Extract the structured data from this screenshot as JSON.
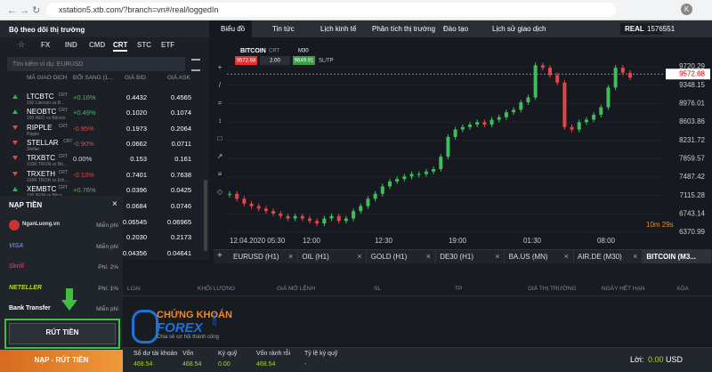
{
  "browser": {
    "url": "xstation5.xtb.com/?branch=vn#/real/loggedIn"
  },
  "header": {
    "watchlist_title": "Bộ theo dõi thị trường",
    "tabs": [
      "Biểu đồ",
      "Tin tức",
      "Lịch kinh tế",
      "Phân tích thị trường",
      "Đào tạo",
      "Lịch sử giao dịch"
    ],
    "account_type": "REAL",
    "account_id": "1576551"
  },
  "watchlist": {
    "tabs": [
      "FX",
      "IND",
      "CMD",
      "CRT",
      "STC",
      "ETF"
    ],
    "active_tab": 3,
    "search_placeholder": "Tìm kiếm ví dụ: EURUSD",
    "columns": [
      "MÃ GIAO DỊCH",
      "ĐỔI SANG (1...",
      "GIÁ BID",
      "GIÁ ASK"
    ],
    "rows": [
      {
        "symbol": "LTCBTC",
        "symbol_type": "CRT",
        "description": "100 Litecoin vs B...",
        "change": "+0.16%",
        "bid": "0.4432",
        "ask": "0.4565"
      },
      {
        "symbol": "NEOBTC",
        "symbol_type": "CRT",
        "description": "100 NEO vs Bitcoin",
        "change": "+0.49%",
        "bid": "0.1020",
        "ask": "0.1074"
      },
      {
        "symbol": "RIPPLE",
        "symbol_type": "CRT",
        "description": "Ripple",
        "change": "-0.95%",
        "bid": "0.1973",
        "ask": "0.2064"
      },
      {
        "symbol": "STELLAR",
        "symbol_type": "CRT",
        "description": "Stellar",
        "change": "-0.90%",
        "bid": "0.0662",
        "ask": "0.0711"
      },
      {
        "symbol": "TRXBTC",
        "symbol_type": "CRT",
        "description": "100K TRON vs Bit...",
        "change": "0.00%",
        "bid": "0.153",
        "ask": "0.161"
      },
      {
        "symbol": "TRXETH",
        "symbol_type": "CRT",
        "description": "100K TRON vs Eth...",
        "change": "-0.13%",
        "bid": "0.7401",
        "ask": "0.7638"
      },
      {
        "symbol": "XEMBTC",
        "symbol_type": "CRT",
        "description": "100 NEM vs Bitco...",
        "change": "+0.76%",
        "bid": "0.0396",
        "ask": "0.0425"
      }
    ],
    "covered_rows": [
      {
        "bid": "0.0684",
        "ask": "0.0746"
      },
      {
        "bid": "0.06545",
        "ask": "0.06965"
      },
      {
        "bid": "0.2030",
        "ask": "0.2173"
      },
      {
        "bid": "0.04356",
        "ask": "0.04641"
      }
    ]
  },
  "deposit": {
    "title": "NẠP TIỀN",
    "methods": [
      {
        "name": "NganLuong.vn",
        "fee": "Miễn phí"
      },
      {
        "name": "VISA",
        "fee": "Miễn phí"
      },
      {
        "name": "Skrill",
        "fee": "Phí: 2%"
      },
      {
        "name": "NETELLER",
        "fee": "Phí: 1%"
      },
      {
        "name": "Bank Transfer",
        "fee": "Miễn phí"
      }
    ],
    "withdraw_button": "RÚT TIỀN",
    "deposit_withdraw_button": "NẠP - RÚT TIỀN"
  },
  "chart": {
    "symbol": "BITCOIN",
    "symbol_type": "CRT",
    "timeframe": "M30",
    "sell_price": "9572.68",
    "volume": "2.00",
    "buy_price": "9649.91",
    "sltp": "SL/TP",
    "ylim": [
      6245,
      10315
    ],
    "yticks": [
      9720.29,
      9348.15,
      8976.01,
      8603.86,
      8231.72,
      7859.57,
      7487.42,
      7115.28,
      6743.14,
      6370.99
    ],
    "current_price": 9572.68,
    "closes": [
      7150,
      7050,
      6950,
      6900,
      6850,
      6800,
      6750,
      6700,
      6650,
      6700,
      6650,
      6600,
      6550,
      6650,
      6700,
      6600,
      6650,
      6800,
      6900,
      7050,
      7150,
      7300,
      7400,
      7450,
      7500,
      7550,
      7550,
      7600,
      7650,
      7900,
      8300,
      8450,
      8500,
      8550,
      8600,
      8550,
      8650,
      8700,
      8800,
      8850,
      9000,
      9100,
      9750,
      9700,
      9550,
      9400,
      8500,
      8450,
      8600,
      8650,
      8750,
      8900,
      9300,
      9700,
      9600,
      9500
    ],
    "time_labels": [
      "12.04.2020 05:30",
      "12:00",
      "12:30",
      "19:00",
      "01:30",
      "08:00"
    ],
    "countdown": "10m 29s"
  },
  "chart_tabs": [
    "EURUSD (H1)",
    "OIL (H1)",
    "GOLD (H1)",
    "DE30 (H1)",
    "BA.US (MN)",
    "AIR.DE (M30)",
    "BITCOIN (M3..."
  ],
  "orders": {
    "columns": [
      "LOẠI",
      "KHỐI LƯỢNG",
      "GIÁ MỞ LỆNH",
      "SL",
      "TP",
      "GIÁ THỊ TRƯỜNG",
      "NGÀY HẾT HẠN",
      "XÓA"
    ]
  },
  "logo": {
    "line1": "CHỨNG KHOÁN",
    "line2": "FOREX",
    "domain": ".com",
    "tagline": "Chia sẻ cơ hội thành công"
  },
  "footer": {
    "stats": [
      {
        "label": "Số dư tài khoản",
        "value": "468.54"
      },
      {
        "label": "Vốn",
        "value": "468.54"
      },
      {
        "label": "Ký quỹ",
        "value": "0.00"
      },
      {
        "label": "Vốn rảnh rỗi",
        "value": "468.54"
      },
      {
        "label": "Tỷ lệ ký quỹ",
        "value": "-"
      }
    ],
    "profit_label": "Lời:",
    "profit_value": "0.00",
    "currency": "USD"
  }
}
